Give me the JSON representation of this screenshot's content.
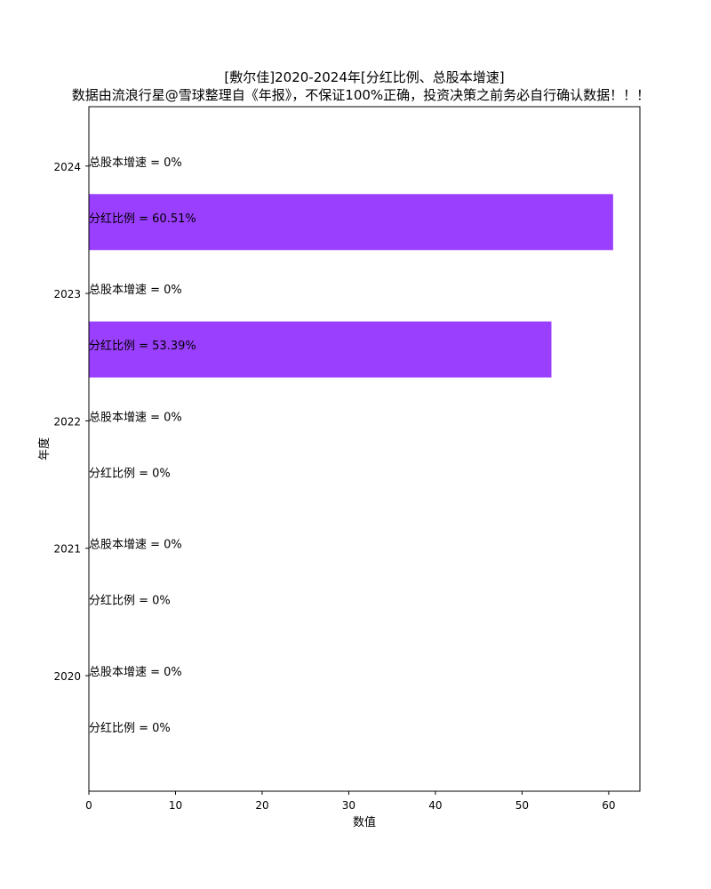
{
  "chart_data": {
    "type": "bar",
    "orientation": "horizontal",
    "title": "[敷尔佳]2020-2024年[分红比例、总股本增速]",
    "subtitle": "数据由流浪行星@雪球整理自《年报》，不保证100%正确，投资决策之前务必自行确认数据！！！",
    "xlabel": "数值",
    "ylabel": "年度",
    "categories": [
      "2020",
      "2021",
      "2022",
      "2023",
      "2024"
    ],
    "series": [
      {
        "name": "总股本增速",
        "values": [
          0,
          0,
          0,
          0,
          0
        ],
        "labels": [
          "总股本增速 = 0%",
          "总股本增速 = 0%",
          "总股本增速 = 0%",
          "总股本增速 = 0%",
          "总股本增速 = 0%"
        ],
        "color": "#9b3fff"
      },
      {
        "name": "分红比例",
        "values": [
          0,
          0,
          0,
          53.39,
          60.51
        ],
        "labels": [
          "分红比例 = 0%",
          "分红比例 = 0%",
          "分红比例 = 0%",
          "分红比例 = 53.39%",
          "分红比例 = 60.51%"
        ],
        "color": "#9b3fff"
      }
    ],
    "xticks": [
      "0",
      "10",
      "20",
      "30",
      "40",
      "50",
      "60"
    ],
    "xlim": [
      0,
      63.6
    ],
    "grid": false,
    "legend": "none"
  }
}
